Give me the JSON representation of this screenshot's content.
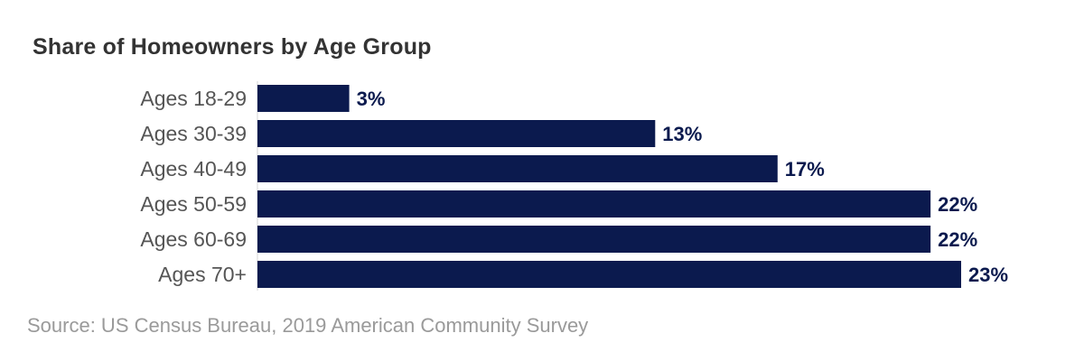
{
  "chart_data": {
    "type": "bar",
    "orientation": "horizontal",
    "title": "Share of Homeowners by Age Group",
    "categories": [
      "Ages 18-29",
      "Ages 30-39",
      "Ages 40-49",
      "Ages 50-59",
      "Ages 60-69",
      "Ages 70+"
    ],
    "values": [
      3,
      13,
      17,
      22,
      22,
      23
    ],
    "value_labels": [
      "3%",
      "13%",
      "17%",
      "22%",
      "22%",
      "23%"
    ],
    "unit": "%",
    "xlim": [
      0,
      23
    ],
    "grid": false,
    "legend": "none",
    "bar_color": "#0b1a4e",
    "label_color": "#0b1a4e"
  },
  "source": "Source: US Census Bureau, 2019 American Community Survey"
}
